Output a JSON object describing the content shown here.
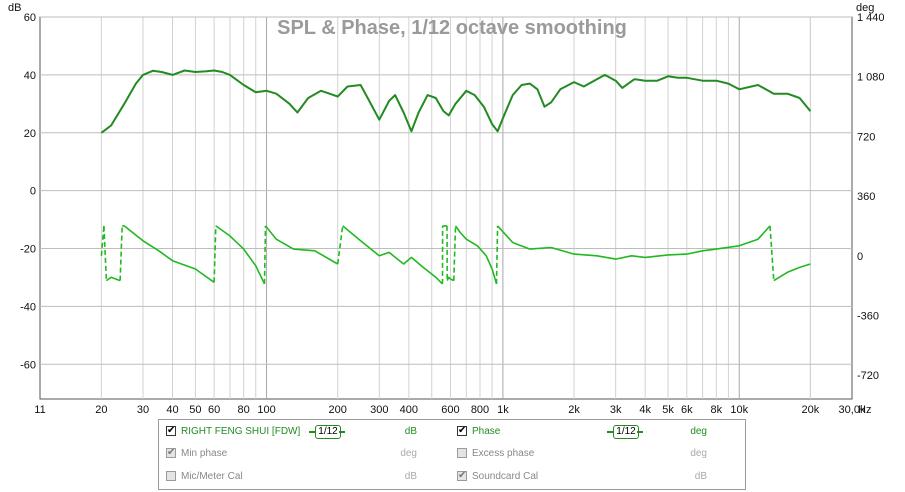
{
  "chart_data": {
    "type": "line",
    "title": "SPL & Phase, 1/12 octave smoothing",
    "x_scale": "log",
    "xlim": [
      11,
      30000
    ],
    "x_ticks": [
      {
        "v": 11,
        "label": "11"
      },
      {
        "v": 20,
        "label": "20"
      },
      {
        "v": 30,
        "label": "30"
      },
      {
        "v": 40,
        "label": "40"
      },
      {
        "v": 50,
        "label": "50"
      },
      {
        "v": 60,
        "label": "60"
      },
      {
        "v": 80,
        "label": "80"
      },
      {
        "v": 100,
        "label": "100"
      },
      {
        "v": 200,
        "label": "200"
      },
      {
        "v": 300,
        "label": "300"
      },
      {
        "v": 400,
        "label": "400"
      },
      {
        "v": 600,
        "label": "600"
      },
      {
        "v": 800,
        "label": "800"
      },
      {
        "v": 1000,
        "label": "1k"
      },
      {
        "v": 2000,
        "label": "2k"
      },
      {
        "v": 3000,
        "label": "3k"
      },
      {
        "v": 4000,
        "label": "4k"
      },
      {
        "v": 5000,
        "label": "5k"
      },
      {
        "v": 6000,
        "label": "6k"
      },
      {
        "v": 8000,
        "label": "8k"
      },
      {
        "v": 10000,
        "label": "10k"
      },
      {
        "v": 20000,
        "label": "20k"
      },
      {
        "v": 30000,
        "label": "30,0k"
      }
    ],
    "x_unit": "Hz",
    "y_left": {
      "unit": "dB",
      "lim": [
        -72,
        60
      ],
      "ticks": [
        60,
        40,
        20,
        0,
        -20,
        -40,
        -60
      ]
    },
    "y_right": {
      "unit": "deg",
      "lim": [
        -864,
        1440
      ],
      "ticks": [
        {
          "v": 1440,
          "label": "1 440"
        },
        {
          "v": 1080,
          "label": "1 080"
        },
        {
          "v": 720,
          "label": "720"
        },
        {
          "v": 360,
          "label": "360"
        },
        {
          "v": 0,
          "label": "0"
        },
        {
          "v": -360,
          "label": "-360"
        },
        {
          "v": -720,
          "label": "-720"
        }
      ]
    },
    "grid": true,
    "series": [
      {
        "name": "RIGHT FENG SHUI [FDW]",
        "axis": "left",
        "color": "#228b22",
        "points": [
          [
            20,
            20
          ],
          [
            22,
            22.5
          ],
          [
            25,
            30
          ],
          [
            28,
            37
          ],
          [
            30,
            40
          ],
          [
            33,
            41.4
          ],
          [
            36,
            41
          ],
          [
            40,
            40
          ],
          [
            45,
            41.5
          ],
          [
            50,
            41
          ],
          [
            55,
            41.2
          ],
          [
            60,
            41.5
          ],
          [
            65,
            41
          ],
          [
            70,
            40
          ],
          [
            80,
            36.5
          ],
          [
            90,
            34
          ],
          [
            100,
            34.5
          ],
          [
            110,
            33.5
          ],
          [
            125,
            30
          ],
          [
            135,
            27
          ],
          [
            150,
            32
          ],
          [
            170,
            34.5
          ],
          [
            185,
            33.5
          ],
          [
            200,
            32.5
          ],
          [
            220,
            36
          ],
          [
            250,
            36.5
          ],
          [
            270,
            31.5
          ],
          [
            300,
            24.5
          ],
          [
            330,
            31
          ],
          [
            350,
            33
          ],
          [
            380,
            27
          ],
          [
            410,
            20.5
          ],
          [
            440,
            27
          ],
          [
            480,
            33
          ],
          [
            520,
            32
          ],
          [
            560,
            27.5
          ],
          [
            590,
            26
          ],
          [
            630,
            30
          ],
          [
            700,
            34.5
          ],
          [
            760,
            33
          ],
          [
            830,
            29
          ],
          [
            900,
            23
          ],
          [
            950,
            20.5
          ],
          [
            1000,
            25
          ],
          [
            1100,
            33
          ],
          [
            1200,
            36.5
          ],
          [
            1300,
            37
          ],
          [
            1400,
            35
          ],
          [
            1500,
            29
          ],
          [
            1600,
            30.5
          ],
          [
            1750,
            35
          ],
          [
            2000,
            37.5
          ],
          [
            2200,
            36
          ],
          [
            2500,
            38.5
          ],
          [
            2700,
            40
          ],
          [
            3000,
            38
          ],
          [
            3200,
            35.5
          ],
          [
            3600,
            38.5
          ],
          [
            4000,
            38
          ],
          [
            4500,
            38
          ],
          [
            5000,
            39.5
          ],
          [
            5500,
            39
          ],
          [
            6000,
            39
          ],
          [
            7000,
            38
          ],
          [
            8000,
            38
          ],
          [
            9000,
            37
          ],
          [
            10000,
            35
          ],
          [
            12000,
            36.5
          ],
          [
            14000,
            33.5
          ],
          [
            16000,
            33.5
          ],
          [
            18000,
            32
          ],
          [
            20000,
            27.5
          ]
        ]
      },
      {
        "name": "Phase",
        "axis": "right",
        "color": "#22b822",
        "points": [
          [
            20,
            0
          ],
          [
            20.5,
            180
          ],
          [
            21,
            -150
          ],
          [
            22,
            -130
          ],
          [
            23,
            -140
          ],
          [
            24,
            -150
          ],
          [
            24.5,
            180
          ],
          [
            25,
            180
          ],
          [
            30,
            90
          ],
          [
            35,
            30
          ],
          [
            40,
            -30
          ],
          [
            50,
            -80
          ],
          [
            60,
            -160
          ],
          [
            61,
            180
          ],
          [
            70,
            120
          ],
          [
            80,
            40
          ],
          [
            90,
            -60
          ],
          [
            98,
            -170
          ],
          [
            99,
            180
          ],
          [
            110,
            100
          ],
          [
            130,
            40
          ],
          [
            160,
            30
          ],
          [
            200,
            -50
          ],
          [
            210,
            180
          ],
          [
            250,
            90
          ],
          [
            300,
            0
          ],
          [
            330,
            20
          ],
          [
            380,
            -50
          ],
          [
            410,
            -10
          ],
          [
            460,
            -70
          ],
          [
            520,
            -130
          ],
          [
            555,
            -170
          ],
          [
            556,
            180
          ],
          [
            580,
            180
          ],
          [
            581,
            -150
          ],
          [
            590,
            -130
          ],
          [
            600,
            -140
          ],
          [
            620,
            -150
          ],
          [
            630,
            180
          ],
          [
            660,
            140
          ],
          [
            700,
            100
          ],
          [
            780,
            60
          ],
          [
            850,
            0
          ],
          [
            900,
            -80
          ],
          [
            940,
            -170
          ],
          [
            950,
            180
          ],
          [
            1100,
            80
          ],
          [
            1300,
            40
          ],
          [
            1600,
            50
          ],
          [
            2000,
            10
          ],
          [
            2500,
            0
          ],
          [
            3000,
            -20
          ],
          [
            3500,
            0
          ],
          [
            4000,
            -10
          ],
          [
            5000,
            5
          ],
          [
            6000,
            10
          ],
          [
            7000,
            30
          ],
          [
            8000,
            40
          ],
          [
            10000,
            60
          ],
          [
            12000,
            100
          ],
          [
            13500,
            180
          ],
          [
            14000,
            -150
          ],
          [
            16000,
            -100
          ],
          [
            18000,
            -70
          ],
          [
            20000,
            -50
          ]
        ]
      }
    ]
  },
  "legend": {
    "rows": [
      {
        "left": {
          "label": "RIGHT FENG SHUI [FDW]",
          "checked": true,
          "enabled": true,
          "smoothing": "1/12",
          "unit": "dB"
        },
        "right": {
          "label": "Phase",
          "checked": true,
          "enabled": true,
          "smoothing": "1/12",
          "unit": "deg"
        }
      },
      {
        "left": {
          "label": "Min phase",
          "checked": true,
          "enabled": false,
          "unit": "deg"
        },
        "right": {
          "label": "Excess phase",
          "checked": false,
          "enabled": false,
          "unit": "deg"
        }
      },
      {
        "left": {
          "label": "Mic/Meter Cal",
          "checked": false,
          "enabled": false,
          "unit": "dB"
        },
        "right": {
          "label": "Soundcard Cal",
          "checked": true,
          "enabled": false,
          "unit": "dB"
        }
      }
    ],
    "check_mark": "✔"
  }
}
